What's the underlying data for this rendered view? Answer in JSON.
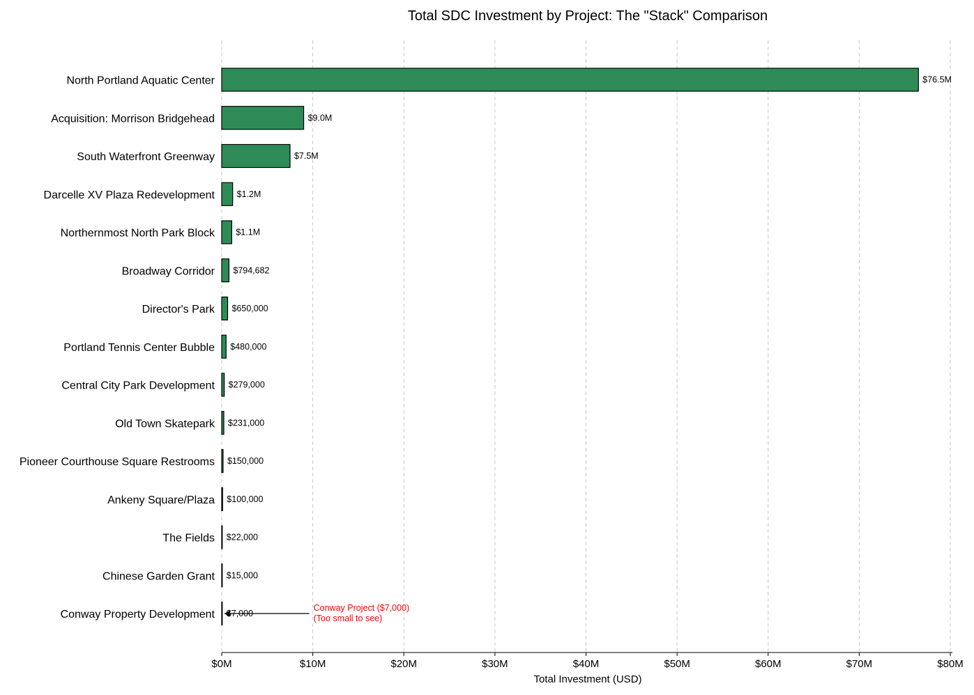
{
  "chart_data": {
    "type": "bar",
    "orientation": "horizontal",
    "title": "Total SDC Investment by Project: The \"Stack\" Comparison",
    "xlabel": "Total Investment (USD)",
    "ylabel": "",
    "xlim": [
      0,
      80000000
    ],
    "x_ticks": [
      0,
      10000000,
      20000000,
      30000000,
      40000000,
      50000000,
      60000000,
      70000000,
      80000000
    ],
    "x_tick_labels": [
      "$0M",
      "$10M",
      "$20M",
      "$30M",
      "$40M",
      "$50M",
      "$60M",
      "$70M",
      "$80M"
    ],
    "grid": "vertical dashed",
    "bar_color": "#2e8b57",
    "categories": [
      "North Portland Aquatic Center",
      "Acquisition: Morrison Bridgehead",
      "South Waterfront Greenway",
      "Darcelle XV Plaza Redevelopment",
      "Northernmost North Park Block",
      "Broadway Corridor",
      "Director's Park",
      "Portland Tennis Center Bubble",
      "Central City Park Development",
      "Old Town Skatepark",
      "Pioneer Courthouse Square Restrooms",
      "Ankeny Square/Plaza",
      "The Fields",
      "Chinese Garden Grant",
      "Conway Property Development"
    ],
    "values": [
      76500000,
      9000000,
      7500000,
      1200000,
      1100000,
      794682,
      650000,
      480000,
      279000,
      231000,
      150000,
      100000,
      22000,
      15000,
      7000
    ],
    "data_labels": [
      "$76.5M",
      "$9.0M",
      "$7.5M",
      "$1.2M",
      "$1.1M",
      "$794,682",
      "$650,000",
      "$480,000",
      "$279,000",
      "$231,000",
      "$150,000",
      "$100,000",
      "$22,000",
      "$15,000",
      "$7,000"
    ],
    "annotation": {
      "lines": [
        "Conway Project ($7,000)",
        "(Too small to see)"
      ],
      "color": "#ff0000",
      "target_category": "Conway Property Development",
      "text_x_value": 10000000
    }
  }
}
